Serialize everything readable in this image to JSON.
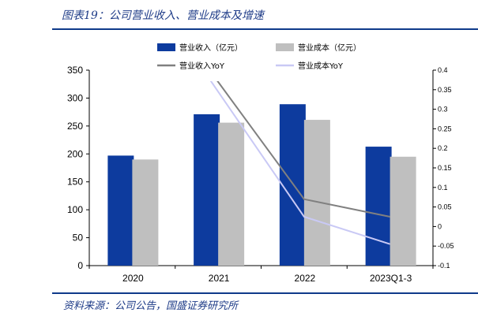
{
  "header": {
    "title": "图表19：公司营业收入、营业成本及增速"
  },
  "footer": {
    "source": "资料来源：公司公告，国盛证券研究所"
  },
  "colors": {
    "revenue_bar": "#0d3b9e",
    "cost_bar": "#bfbfbf",
    "revenue_yoy_line": "#808080",
    "cost_yoy_line": "#c9c9f5",
    "title_text": "#1f3c88"
  },
  "chart_data": {
    "type": "bar",
    "categories": [
      "2020",
      "2021",
      "2022",
      "2023Q1-3"
    ],
    "series": [
      {
        "name": "营业收入（亿元）",
        "kind": "bar",
        "axis": "left",
        "values": [
          197,
          271,
          289,
          213
        ]
      },
      {
        "name": "营业成本（亿元）",
        "kind": "bar",
        "axis": "left",
        "values": [
          190,
          256,
          261,
          195
        ]
      },
      {
        "name": "营业收入YoY",
        "kind": "line",
        "axis": "right",
        "values": [
          null,
          0.37,
          0.07,
          0.025
        ]
      },
      {
        "name": "营业成本YoY",
        "kind": "line",
        "axis": "right",
        "values": [
          null,
          0.345,
          0.025,
          -0.045
        ]
      }
    ],
    "left_axis": {
      "ylim": [
        0,
        350
      ],
      "ticks": [
        "0",
        "50",
        "100",
        "150",
        "200",
        "250",
        "300",
        "350"
      ]
    },
    "right_axis": {
      "ylim": [
        -0.1,
        0.4
      ],
      "ticks": [
        "-0.1",
        "-0.05",
        "0",
        "0.05",
        "0.1",
        "0.15",
        "0.2",
        "0.25",
        "0.3",
        "0.35",
        "0.4"
      ]
    },
    "legend": {
      "placement": "top",
      "items": [
        "营业收入（亿元）",
        "营业成本（亿元）",
        "营业收入YoY",
        "营业成本YoY"
      ]
    },
    "grid": false
  }
}
